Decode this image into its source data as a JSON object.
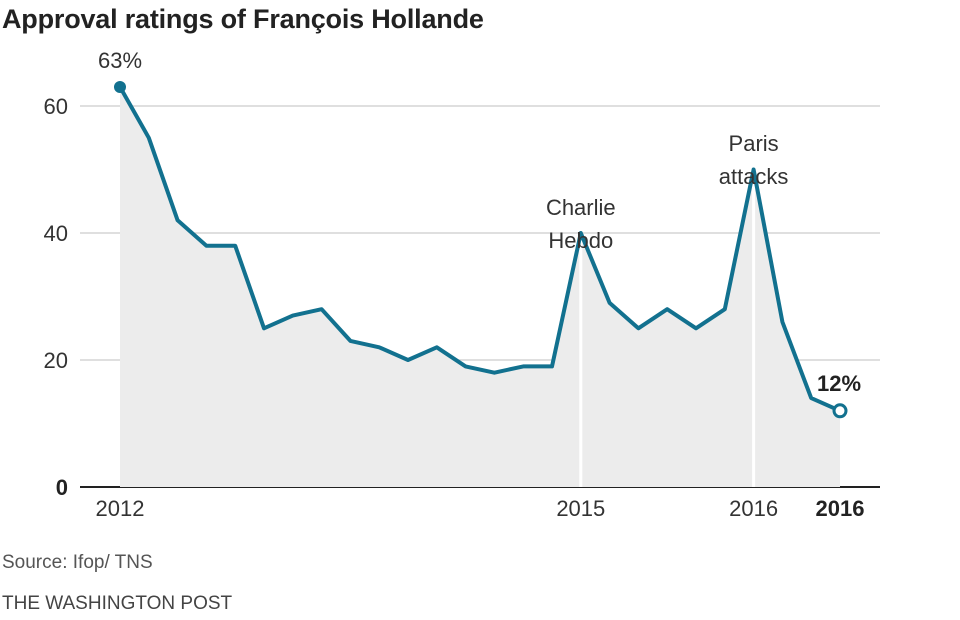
{
  "chart_data": {
    "type": "area",
    "title": "Approval ratings of François Hollande",
    "xlabel": "",
    "ylabel": "",
    "ylim": [
      0,
      60
    ],
    "yticks": [
      0,
      20,
      40,
      60
    ],
    "grid": true,
    "x_tick_labels": [
      {
        "index": 0,
        "label": "2012",
        "bold": false
      },
      {
        "index": 16,
        "label": "2015",
        "bold": false
      },
      {
        "index": 22,
        "label": "2016",
        "bold": false
      },
      {
        "index": 25,
        "label": "2016",
        "bold": true
      }
    ],
    "series": [
      {
        "name": "Approval rating (%)",
        "color": "#12718f",
        "fill": "#ececec",
        "values": [
          63,
          55,
          42,
          38,
          38,
          25,
          27,
          28,
          23,
          22,
          20,
          22,
          19,
          18,
          19,
          19,
          40,
          29,
          25,
          28,
          25,
          28,
          50,
          26,
          14,
          12
        ]
      }
    ],
    "annotations": [
      {
        "index": 0,
        "lines": [
          "63%"
        ],
        "bold": false,
        "marker": "filled"
      },
      {
        "index": 16,
        "lines": [
          "Charlie",
          "Hebdo"
        ],
        "bold": false,
        "marker": "vline"
      },
      {
        "index": 22,
        "lines": [
          "Paris",
          "attacks"
        ],
        "bold": false,
        "marker": "vline"
      },
      {
        "index": 25,
        "lines": [
          "12%"
        ],
        "bold": true,
        "marker": "open"
      }
    ],
    "source": "Source: Ifop/ TNS",
    "credit": "THE WASHINGTON POST"
  }
}
